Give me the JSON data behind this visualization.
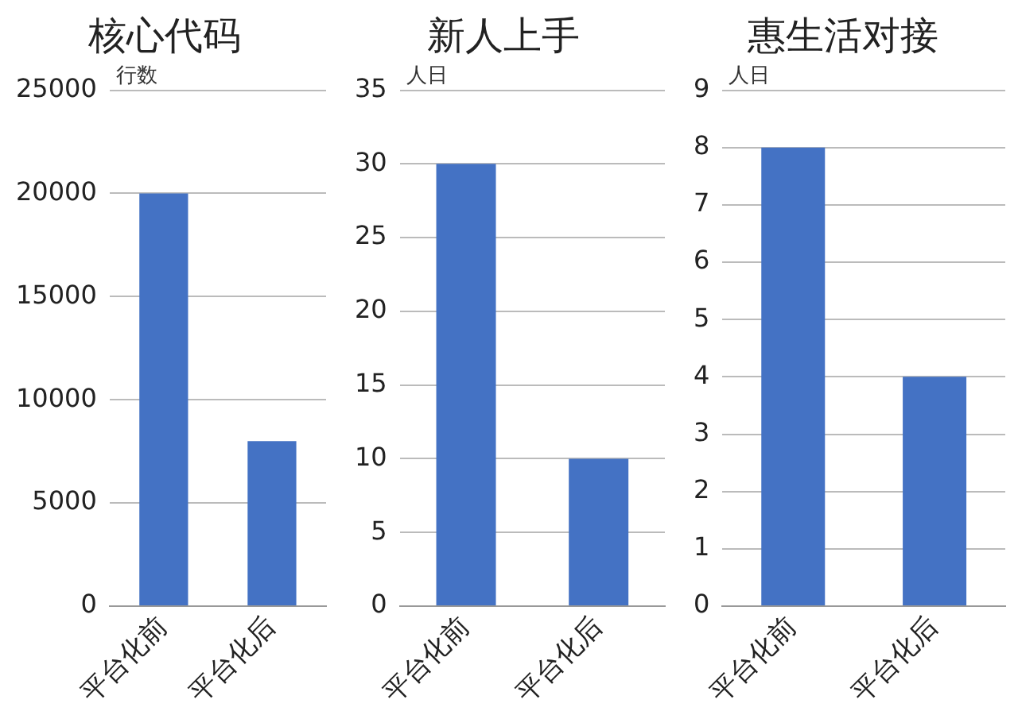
{
  "chart_data": [
    {
      "type": "bar",
      "title": "核心代码",
      "ylabel": "行数",
      "categories": [
        "平台化前",
        "平台化后"
      ],
      "values": [
        20000,
        8000
      ],
      "color": "#4472c4",
      "ylim": [
        0,
        25000
      ],
      "yticks": [
        0,
        5000,
        10000,
        15000,
        20000,
        25000
      ],
      "grid": "y"
    },
    {
      "type": "bar",
      "title": "新人上手",
      "ylabel": "人日",
      "categories": [
        "平台化前",
        "平台化后"
      ],
      "values": [
        30,
        10
      ],
      "color": "#4472c4",
      "ylim": [
        0,
        35
      ],
      "yticks": [
        0,
        5,
        10,
        15,
        20,
        25,
        30,
        35
      ],
      "grid": "y"
    },
    {
      "type": "bar",
      "title": "惠生活对接",
      "ylabel": "人日",
      "categories": [
        "平台化前",
        "平台化后"
      ],
      "values": [
        8,
        4
      ],
      "color": "#4472c4",
      "ylim": [
        0,
        9
      ],
      "yticks": [
        0,
        1,
        2,
        3,
        4,
        5,
        6,
        7,
        8,
        9
      ],
      "grid": "y"
    }
  ]
}
